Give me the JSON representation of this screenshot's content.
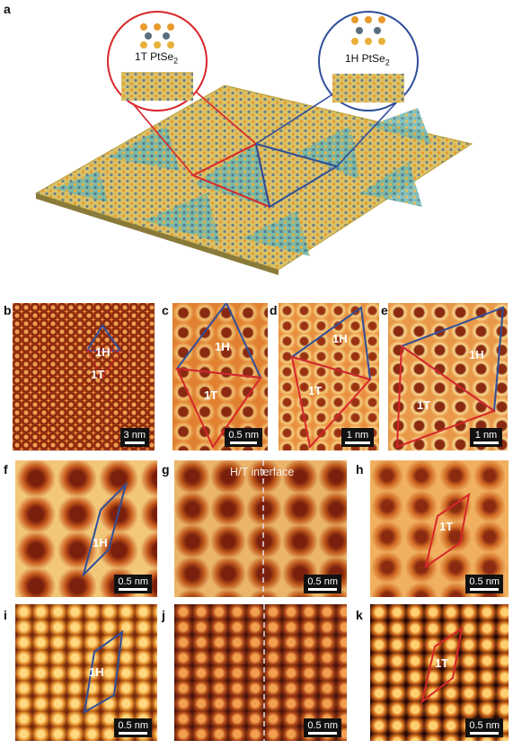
{
  "figure": {
    "panel_letters": {
      "a": "a",
      "b": "b",
      "c": "c",
      "d": "d",
      "e": "e",
      "f": "f",
      "g": "g",
      "h": "h",
      "i": "i",
      "j": "j",
      "k": "k"
    },
    "inset_left_title": "1T PtSe",
    "inset_left_sub": "2",
    "inset_right_title": "1H PtSe",
    "inset_right_sub": "2",
    "labels": {
      "b_1h": "1H",
      "b_1t": "1T",
      "c_1h": "1H",
      "c_1t": "1T",
      "d_1h": "1H",
      "d_1t": "1T",
      "e_1h": "1H",
      "e_1t": "1T",
      "f_1h": "1H",
      "h_1t": "1T",
      "i_1h": "1H",
      "k_1t": "1T"
    },
    "interface_label": "H/T interface",
    "scalebars": {
      "b": "3 nm",
      "c": "0.5 nm",
      "d": "1 nm",
      "e": "1 nm",
      "f": "0.5 nm",
      "g": "0.5 nm",
      "h": "0.5 nm",
      "i": "0.5 nm",
      "j": "0.5 nm",
      "k": "0.5 nm"
    },
    "colors": {
      "red": "#d8262a",
      "blue": "#2f4f9a"
    }
  }
}
